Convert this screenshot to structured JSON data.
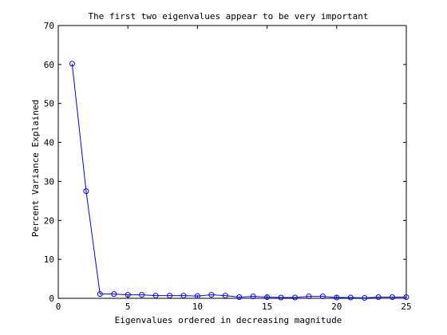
{
  "chart_data": {
    "type": "line",
    "title": "The first two eigenvalues appear to be very important",
    "xlabel": "Eigenvalues ordered in decreasing magnitude",
    "ylabel": "Percent Variance Explained",
    "xlim": [
      0,
      25
    ],
    "ylim": [
      0,
      70
    ],
    "xticks": [
      0,
      5,
      10,
      15,
      20,
      25
    ],
    "yticks": [
      0,
      10,
      20,
      30,
      40,
      50,
      60,
      70
    ],
    "grid": false,
    "series": [
      {
        "color": "#0000ff",
        "marker": "circle",
        "x": [
          1,
          2,
          3,
          4,
          5,
          6,
          7,
          8,
          9,
          10,
          11,
          12,
          13,
          14,
          15,
          16,
          17,
          18,
          19,
          20,
          21,
          22,
          23,
          24,
          25
        ],
        "y": [
          60.2,
          27.5,
          1.1,
          1.1,
          0.9,
          0.9,
          0.7,
          0.7,
          0.7,
          0.6,
          0.9,
          0.7,
          0.3,
          0.5,
          0.3,
          0.2,
          0.2,
          0.5,
          0.5,
          0.2,
          0.2,
          0.1,
          0.3,
          0.3,
          0.3
        ]
      }
    ]
  }
}
